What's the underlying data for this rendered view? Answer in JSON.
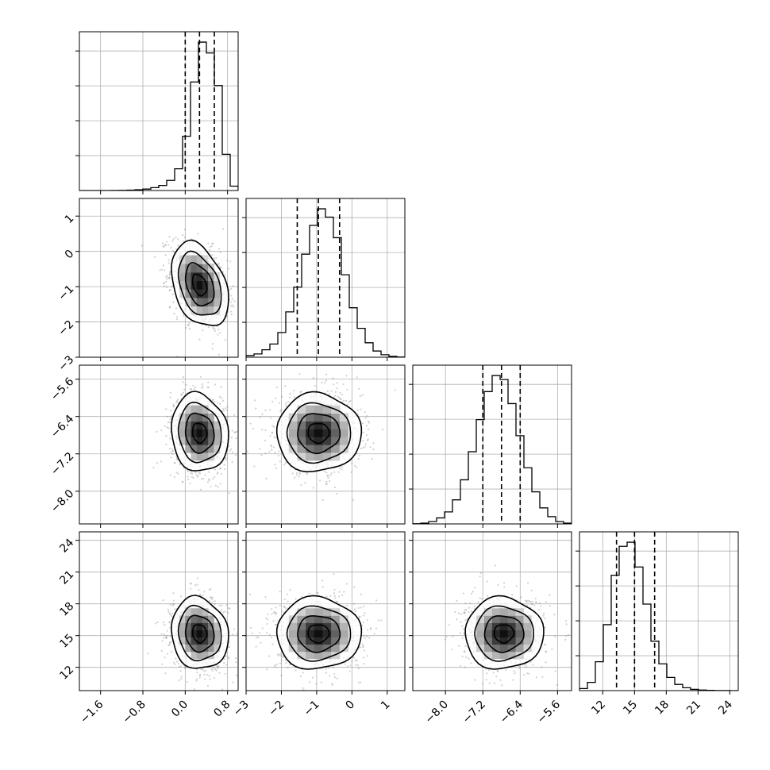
{
  "chart_data": {
    "type": "corner",
    "parameters": [
      {
        "range": [
          -2.0,
          1.0
        ],
        "ticks": [
          -1.6,
          -0.8,
          0.0,
          0.8
        ],
        "tick_labels": [
          "−1.6",
          "−0.8",
          "0.0",
          "0.8"
        ],
        "median": 0.27,
        "sigma": 0.27,
        "quantiles": [
          0.0,
          0.27,
          0.55
        ],
        "hist": {
          "bin_edges": [
            -2.0,
            -1.85,
            -1.7,
            -1.55,
            -1.4,
            -1.25,
            -1.1,
            -0.95,
            -0.8,
            -0.65,
            -0.5,
            -0.35,
            -0.2,
            -0.05,
            0.1,
            0.25,
            0.4,
            0.55,
            0.7,
            0.85,
            1.0
          ],
          "counts": [
            0,
            0,
            0,
            0,
            2,
            5,
            10,
            22,
            40,
            80,
            140,
            280,
            600,
            1500,
            3000,
            4100,
            3800,
            2900,
            1000,
            120
          ]
        }
      },
      {
        "range": [
          -3.0,
          1.5
        ],
        "ticks": [
          -3,
          -2,
          -1,
          0,
          1
        ],
        "tick_labels": [
          "−3",
          "−2",
          "−1",
          "0",
          "1"
        ],
        "median": -0.95,
        "sigma": 0.6,
        "quantiles": [
          -1.55,
          -0.95,
          -0.35
        ],
        "hist": {
          "bin_edges": [
            -3.0,
            -2.775,
            -2.55,
            -2.325,
            -2.1,
            -1.875,
            -1.65,
            -1.425,
            -1.2,
            -0.975,
            -0.75,
            -0.525,
            -0.3,
            -0.075,
            0.15,
            0.375,
            0.6,
            0.825,
            1.05,
            1.275,
            1.5
          ],
          "counts": [
            40,
            80,
            180,
            320,
            600,
            1100,
            1700,
            2500,
            3200,
            3600,
            3400,
            2900,
            2000,
            1200,
            700,
            350,
            150,
            60,
            20,
            5
          ]
        }
      },
      {
        "range": [
          -8.7,
          -5.3
        ],
        "ticks": [
          -8.0,
          -7.2,
          -6.4,
          -5.6
        ],
        "tick_labels": [
          "−8.0",
          "−7.2",
          "−6.4",
          "−5.6"
        ],
        "median": -6.8,
        "sigma": 0.42,
        "quantiles": [
          -7.2,
          -6.8,
          -6.4
        ],
        "hist": {
          "bin_edges": [
            -8.7,
            -8.53,
            -8.36,
            -8.19,
            -8.02,
            -7.85,
            -7.68,
            -7.51,
            -7.34,
            -7.17,
            -7.0,
            -6.83,
            -6.66,
            -6.49,
            -6.32,
            -6.15,
            -5.98,
            -5.81,
            -5.64,
            -5.47,
            -5.3
          ],
          "counts": [
            5,
            20,
            60,
            150,
            300,
            600,
            1100,
            1800,
            2600,
            3300,
            3700,
            3600,
            3000,
            2200,
            1400,
            800,
            400,
            180,
            60,
            20
          ]
        }
      },
      {
        "range": [
          9.8,
          24.8
        ],
        "ticks": [
          12,
          15,
          18,
          21,
          24
        ],
        "tick_labels": [
          "12",
          "15",
          "18",
          "21",
          "24"
        ],
        "median": 15.0,
        "sigma": 1.7,
        "quantiles": [
          13.3,
          15.0,
          16.9
        ],
        "hist": {
          "bin_edges": [
            9.8,
            10.55,
            11.3,
            12.05,
            12.8,
            13.55,
            14.3,
            15.05,
            15.8,
            16.55,
            17.3,
            18.05,
            18.8,
            19.55,
            20.3,
            21.05,
            21.8,
            22.55,
            23.3,
            24.05,
            24.8
          ],
          "counts": [
            50,
            200,
            700,
            1600,
            2800,
            3500,
            3600,
            3000,
            2100,
            1200,
            650,
            320,
            150,
            70,
            30,
            15,
            6,
            3,
            1,
            0
          ]
        }
      }
    ],
    "pairs": [
      {
        "x": 0,
        "y": 1,
        "x_center": 0.27,
        "y_center": -0.95,
        "correlation": -0.35
      },
      {
        "x": 0,
        "y": 2,
        "x_center": 0.27,
        "y_center": -6.75,
        "correlation": -0.1
      },
      {
        "x": 1,
        "y": 2,
        "x_center": -0.95,
        "y_center": -6.75,
        "correlation": 0.0
      },
      {
        "x": 0,
        "y": 3,
        "x_center": 0.27,
        "y_center": 15.2,
        "correlation": -0.1
      },
      {
        "x": 1,
        "y": 3,
        "x_center": -0.95,
        "y_center": 15.2,
        "correlation": 0.0
      },
      {
        "x": 2,
        "y": 3,
        "x_center": -6.75,
        "y_center": 15.2,
        "correlation": 0.0
      }
    ],
    "contour_levels_sigma": [
      0.5,
      1.0,
      1.5,
      2.0
    ],
    "hist_y_grid_lines": 4,
    "grid": true,
    "colors": {
      "line": "#000000",
      "scatter": "#7a7a7a",
      "grid": "#b0b0b0"
    }
  }
}
